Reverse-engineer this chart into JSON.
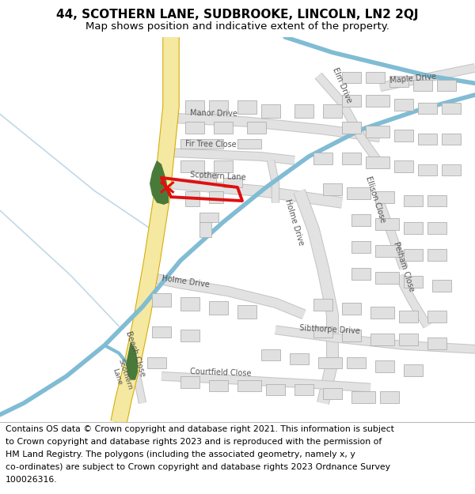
{
  "title_line1": "44, SCOTHERN LANE, SUDBROOKE, LINCOLN, LN2 2QJ",
  "title_line2": "Map shows position and indicative extent of the property.",
  "footer_lines": [
    "Contains OS data © Crown copyright and database right 2021. This information is subject",
    "to Crown copyright and database rights 2023 and is reproduced with the permission of",
    "HM Land Registry. The polygons (including the associated geometry, namely x, y",
    "co-ordinates) are subject to Crown copyright and database rights 2023 Ordnance Survey",
    "100026316."
  ],
  "bg_color": "#ffffff",
  "road_yellow_fill": "#f5e8a0",
  "road_yellow_edge": "#d4aa00",
  "road_grey_fill": "#e2e2e2",
  "road_grey_edge": "#c5c5c5",
  "building_fill": "#e0e0e0",
  "building_edge": "#b0b0b0",
  "water_blue": "#80bcd4",
  "water_blue_light": "#b8d8e8",
  "green_fill": "#4a7a3a",
  "plot_red": "#dd1111",
  "label_color": "#555555",
  "thin_line_color": "#c0d8e8"
}
